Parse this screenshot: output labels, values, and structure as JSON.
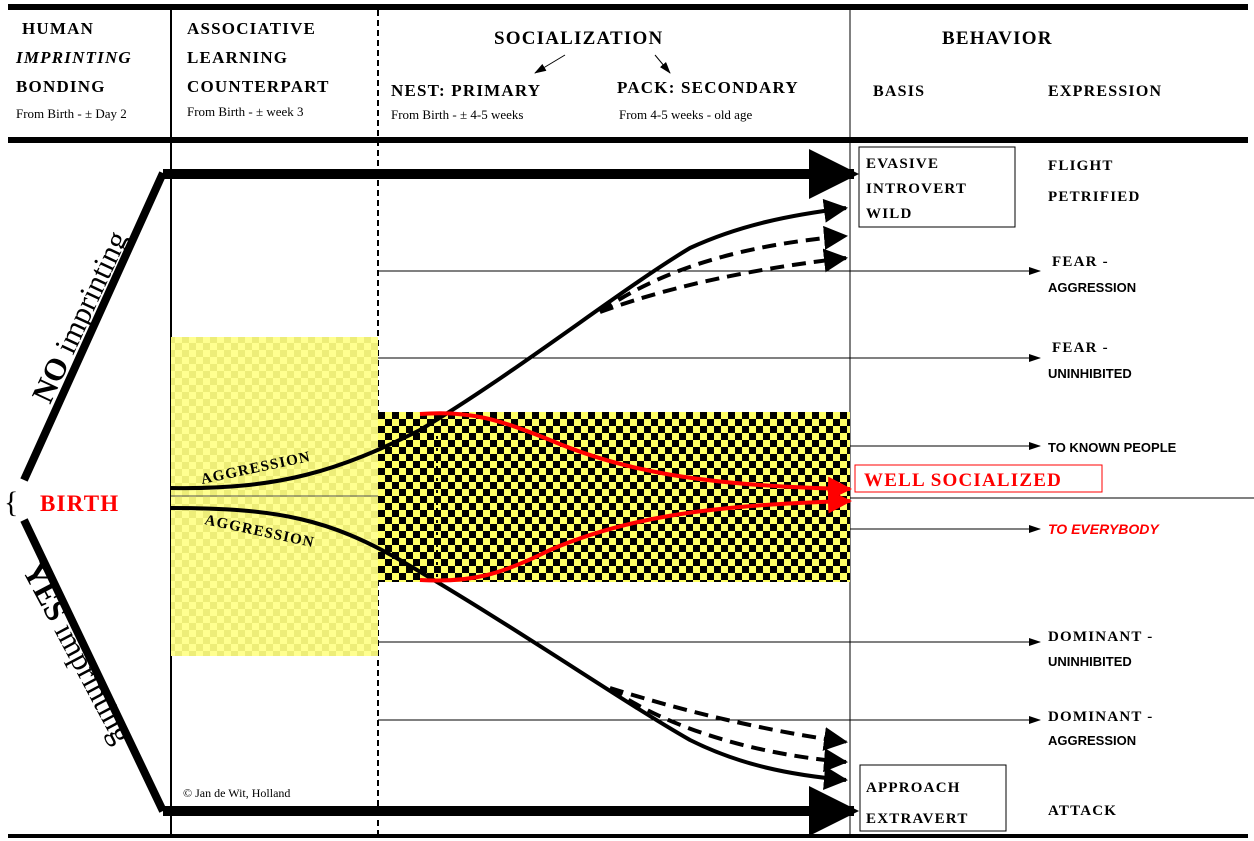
{
  "header": {
    "col1": {
      "line1": "HUMAN",
      "line2": "IMPRINTING",
      "line3": "BONDING",
      "sub": "From Birth  - ± Day 2"
    },
    "col2": {
      "line1": "ASSOCIATIVE",
      "line2": "LEARNING",
      "line3": "COUNTERPART",
      "sub": "From Birth - ±  week 3"
    },
    "col3": {
      "title": "SOCIALIZATION",
      "nest": "NEST: PRIMARY",
      "nest_sub": "From Birth - ±  4-5 weeks",
      "pack": "PACK: SECONDARY",
      "pack_sub": "From 4-5 weeks - old age"
    },
    "col4": {
      "title": "BEHAVIOR",
      "basis": "BASIS",
      "expression": "EXPRESSION"
    }
  },
  "left": {
    "no_imprinting": "NO imprinting",
    "birth": "BIRTH",
    "yes_imprinting": "YES imprinting"
  },
  "labels": {
    "aggression_top": "AGGRESSION",
    "aggression_bottom": "AGGRESSION",
    "copyright": "© Jan de Wit, Holland"
  },
  "basis": {
    "evasive": [
      "EVASIVE",
      "INTROVERT",
      "WILD"
    ],
    "well_socialized": "WELL SOCIALIZED",
    "approach": [
      "APPROACH",
      "EXTRAVERT"
    ]
  },
  "expression": {
    "flight": "FLIGHT",
    "petrified": "PETRIFIED",
    "fear_aggr_1": "FEAR -",
    "fear_aggr_2": "AGGRESSION",
    "fear_uninh_1": "FEAR -",
    "fear_uninh_2": "UNINHIBITED",
    "known": "TO KNOWN PEOPLE",
    "everybody": "TO EVERYBODY",
    "dom_uninh_1": "DOMINANT -",
    "dom_uninh_2": "UNINHIBITED",
    "dom_aggr_1": "DOMINANT -",
    "dom_aggr_2": "AGGRESSION",
    "attack": "ATTACK"
  },
  "colors": {
    "red": "#ff0000",
    "yellow": "#ffff88",
    "yellow_check": "#f0f07a",
    "black": "#000000"
  }
}
